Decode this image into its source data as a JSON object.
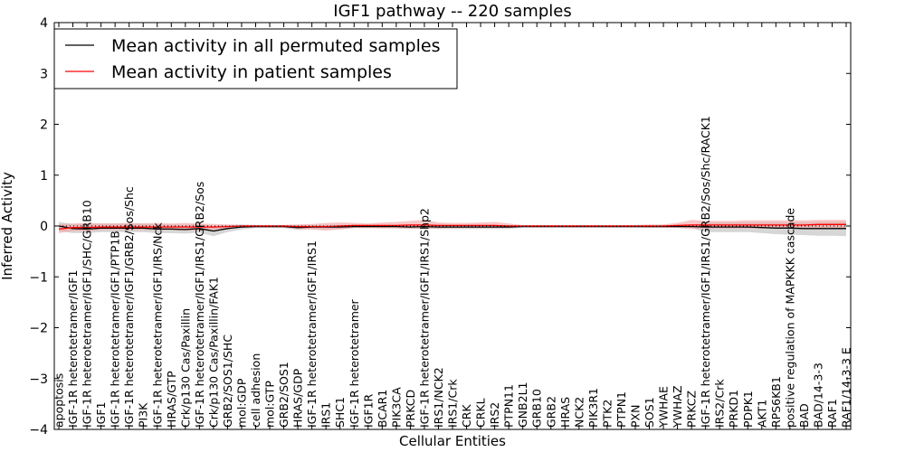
{
  "chart_data": {
    "type": "line",
    "title": "IGF1 pathway -- 220 samples",
    "xlabel": "Cellular Entities",
    "ylabel": "Inferred Activity",
    "ylim": [
      -4,
      4
    ],
    "yticks": [
      "−4",
      "−3",
      "−2",
      "−1",
      "0",
      "1",
      "2",
      "3",
      "4"
    ],
    "grid": false,
    "legend_position": "top-left",
    "categories": [
      "apoptosis",
      "IGF-1R heterotetramer/IGF1",
      "IGF-1R heterotetramer/IGF1/SHC/GRB10",
      "IGF1",
      "IGF-1R heterotetramer/IGF1/PTP1B",
      "IGF-1R heterotetramer/IGF1/GRB2/Sos/Shc",
      "PI3K",
      "IGF-1R heterotetramer/IGF1/IRS/Nck",
      "HRAS/GTP",
      "Crk/p130 Cas/Paxillin",
      "IGF-1R heterotetramer/IGF1/IRS1/GRB2/Sos",
      "Crk/p130 Cas/Paxillin/FAK1",
      "GRB2/SOS1/SHC",
      "mol:GDP",
      "cell adhesion",
      "mol:GTP",
      "GRB2/SOS1",
      "HRAS/GDP",
      "IGF-1R heterotetramer/IGF1/IRS1",
      "IRS1",
      "SHC1",
      "IGF-1R heterotetramer",
      "IGF1R",
      "BCAR1",
      "PIK3CA",
      "PRKCD",
      "IGF-1R heterotetramer/IGF1/IRS1/Shp2",
      "IRS1/NCK2",
      "IRS1/Crk",
      "CRK",
      "CRKL",
      "IRS2",
      "PTPN11",
      "GNB2L1",
      "GRB10",
      "GRB2",
      "HRAS",
      "NCK2",
      "PIK3R1",
      "PTK2",
      "PTPN1",
      "PXN",
      "SOS1",
      "YWHAE",
      "YWHAZ",
      "PRKCZ",
      "IGF-1R heterotetramer/IGF1/IRS1/GRB2/Sos/Shc/RACK1",
      "IRS2/Crk",
      "PRKD1",
      "PDPK1",
      "AKT1",
      "RPS6KB1",
      "positive regulation of MAPKKK cascade",
      "BAD",
      "BAD/14-3-3",
      "RAF1",
      "RAF1/14-3-3 E"
    ],
    "series": [
      {
        "name": "Mean activity in all permuted samples",
        "color": "#000000",
        "band_color": "#c8c8c8",
        "values": [
          0.0,
          -0.05,
          -0.06,
          -0.04,
          -0.04,
          -0.04,
          -0.04,
          -0.06,
          -0.06,
          -0.07,
          -0.05,
          -0.1,
          -0.05,
          -0.02,
          -0.01,
          -0.01,
          -0.01,
          -0.03,
          -0.02,
          -0.02,
          -0.02,
          -0.01,
          -0.01,
          -0.01,
          -0.01,
          -0.02,
          -0.01,
          -0.02,
          -0.02,
          -0.02,
          -0.02,
          -0.02,
          -0.02,
          -0.01,
          -0.01,
          -0.01,
          -0.01,
          -0.01,
          -0.01,
          -0.01,
          -0.01,
          -0.01,
          -0.01,
          -0.01,
          -0.01,
          -0.01,
          -0.02,
          -0.02,
          -0.02,
          -0.02,
          -0.03,
          -0.04,
          -0.04,
          -0.05,
          -0.05,
          -0.05,
          -0.05
        ],
        "lower": [
          -0.1,
          -0.14,
          -0.14,
          -0.12,
          -0.12,
          -0.12,
          -0.12,
          -0.14,
          -0.14,
          -0.15,
          -0.13,
          -0.2,
          -0.12,
          -0.07,
          -0.04,
          -0.04,
          -0.04,
          -0.08,
          -0.06,
          -0.06,
          -0.06,
          -0.04,
          -0.04,
          -0.04,
          -0.04,
          -0.06,
          -0.05,
          -0.06,
          -0.06,
          -0.06,
          -0.06,
          -0.06,
          -0.06,
          -0.03,
          -0.03,
          -0.03,
          -0.03,
          -0.03,
          -0.03,
          -0.03,
          -0.03,
          -0.03,
          -0.03,
          -0.03,
          -0.03,
          -0.04,
          -0.12,
          -0.12,
          -0.12,
          -0.12,
          -0.14,
          -0.16,
          -0.17,
          -0.18,
          -0.19,
          -0.19,
          -0.2
        ],
        "upper": [
          0.08,
          0.04,
          0.04,
          0.05,
          0.05,
          0.05,
          0.05,
          0.03,
          0.03,
          0.02,
          0.04,
          0.0,
          0.02,
          0.03,
          0.02,
          0.02,
          0.02,
          0.02,
          0.02,
          0.02,
          0.02,
          0.02,
          0.02,
          0.02,
          0.02,
          0.02,
          0.03,
          0.02,
          0.02,
          0.02,
          0.02,
          0.02,
          0.02,
          0.01,
          0.01,
          0.01,
          0.01,
          0.01,
          0.01,
          0.01,
          0.01,
          0.01,
          0.01,
          0.01,
          0.01,
          0.02,
          0.07,
          0.07,
          0.07,
          0.07,
          0.07,
          0.07,
          0.07,
          0.07,
          0.08,
          0.08,
          0.08
        ]
      },
      {
        "name": "Mean activity in patient samples",
        "color": "#ff0000",
        "band_color": "#f4a0a0",
        "values": [
          -0.06,
          -0.03,
          -0.03,
          -0.02,
          -0.02,
          -0.02,
          -0.02,
          -0.02,
          -0.02,
          -0.02,
          -0.02,
          -0.02,
          -0.01,
          0.0,
          0.0,
          0.0,
          0.0,
          -0.01,
          -0.01,
          -0.01,
          0.0,
          0.01,
          0.01,
          0.01,
          0.01,
          0.02,
          0.02,
          0.01,
          0.01,
          0.01,
          0.01,
          0.01,
          0.0,
          0.0,
          0.0,
          0.0,
          0.0,
          0.0,
          0.0,
          0.0,
          0.0,
          0.0,
          0.0,
          0.0,
          0.01,
          0.02,
          0.02,
          0.02,
          0.02,
          0.02,
          0.02,
          0.02,
          0.02,
          0.02,
          0.03,
          0.03,
          0.03
        ],
        "lower": [
          -0.14,
          -0.1,
          -0.1,
          -0.08,
          -0.08,
          -0.08,
          -0.08,
          -0.08,
          -0.08,
          -0.09,
          -0.09,
          -0.08,
          -0.05,
          -0.03,
          -0.03,
          -0.03,
          -0.03,
          -0.06,
          -0.07,
          -0.09,
          -0.07,
          -0.04,
          -0.04,
          -0.05,
          -0.05,
          -0.05,
          -0.06,
          -0.05,
          -0.04,
          -0.04,
          -0.04,
          -0.04,
          -0.03,
          -0.02,
          -0.02,
          -0.02,
          -0.02,
          -0.02,
          -0.02,
          -0.02,
          -0.02,
          -0.02,
          -0.03,
          -0.03,
          -0.04,
          -0.06,
          -0.05,
          -0.05,
          -0.05,
          -0.05,
          -0.05,
          -0.05,
          -0.05,
          -0.05,
          -0.05,
          -0.05,
          -0.05
        ],
        "upper": [
          0.03,
          0.05,
          0.06,
          0.05,
          0.05,
          0.06,
          0.05,
          0.06,
          0.05,
          0.06,
          0.05,
          0.04,
          0.03,
          0.02,
          0.02,
          0.02,
          0.02,
          0.03,
          0.04,
          0.06,
          0.07,
          0.06,
          0.05,
          0.07,
          0.08,
          0.1,
          0.12,
          0.07,
          0.06,
          0.06,
          0.07,
          0.08,
          0.05,
          0.02,
          0.02,
          0.02,
          0.02,
          0.02,
          0.02,
          0.02,
          0.02,
          0.02,
          0.03,
          0.03,
          0.06,
          0.12,
          0.1,
          0.1,
          0.1,
          0.11,
          0.11,
          0.11,
          0.11,
          0.11,
          0.12,
          0.12,
          0.12
        ]
      }
    ],
    "reference_line": {
      "value": 0,
      "style": "dotted",
      "color": "#000000"
    }
  }
}
